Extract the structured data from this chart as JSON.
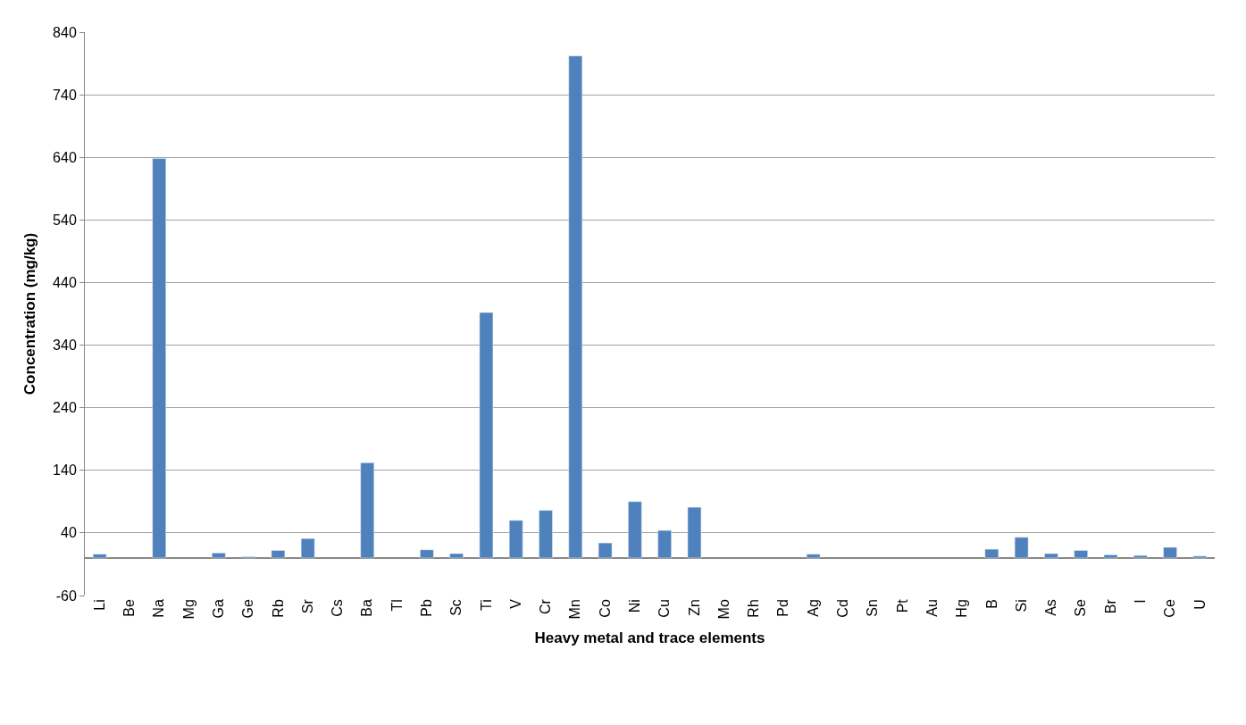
{
  "chart_data": {
    "type": "bar",
    "xlabel": "Heavy metal and trace elements",
    "ylabel": "Concentration (mg/kg)",
    "categories": [
      "Li",
      "Be",
      "Na",
      "Mg",
      "Ga",
      "Ge",
      "Rb",
      "Sr",
      "Cs",
      "Ba",
      "Tl",
      "Pb",
      "Sc",
      "Ti",
      "V",
      "Cr",
      "Mn",
      "Co",
      "Ni",
      "Cu",
      "Zn",
      "Mo",
      "Rh",
      "Pd",
      "Ag",
      "Cd",
      "Sn",
      "Pt",
      "Au",
      "Hg",
      "B",
      "Si",
      "As",
      "Se",
      "Br",
      "I",
      "Ce",
      "U"
    ],
    "values": [
      6,
      null,
      638,
      null,
      8,
      2,
      12,
      31,
      null,
      152,
      null,
      13,
      7,
      392,
      60,
      76,
      802,
      24,
      90,
      44,
      81,
      null,
      null,
      null,
      6,
      null,
      null,
      null,
      null,
      null,
      14,
      33,
      7,
      12,
      5,
      4,
      17,
      3
    ],
    "color": "#4f81bd",
    "ylim": [
      -60,
      840
    ],
    "yticks": [
      -60,
      40,
      140,
      240,
      340,
      440,
      540,
      640,
      740,
      840
    ],
    "grid": "y",
    "legend": false
  }
}
